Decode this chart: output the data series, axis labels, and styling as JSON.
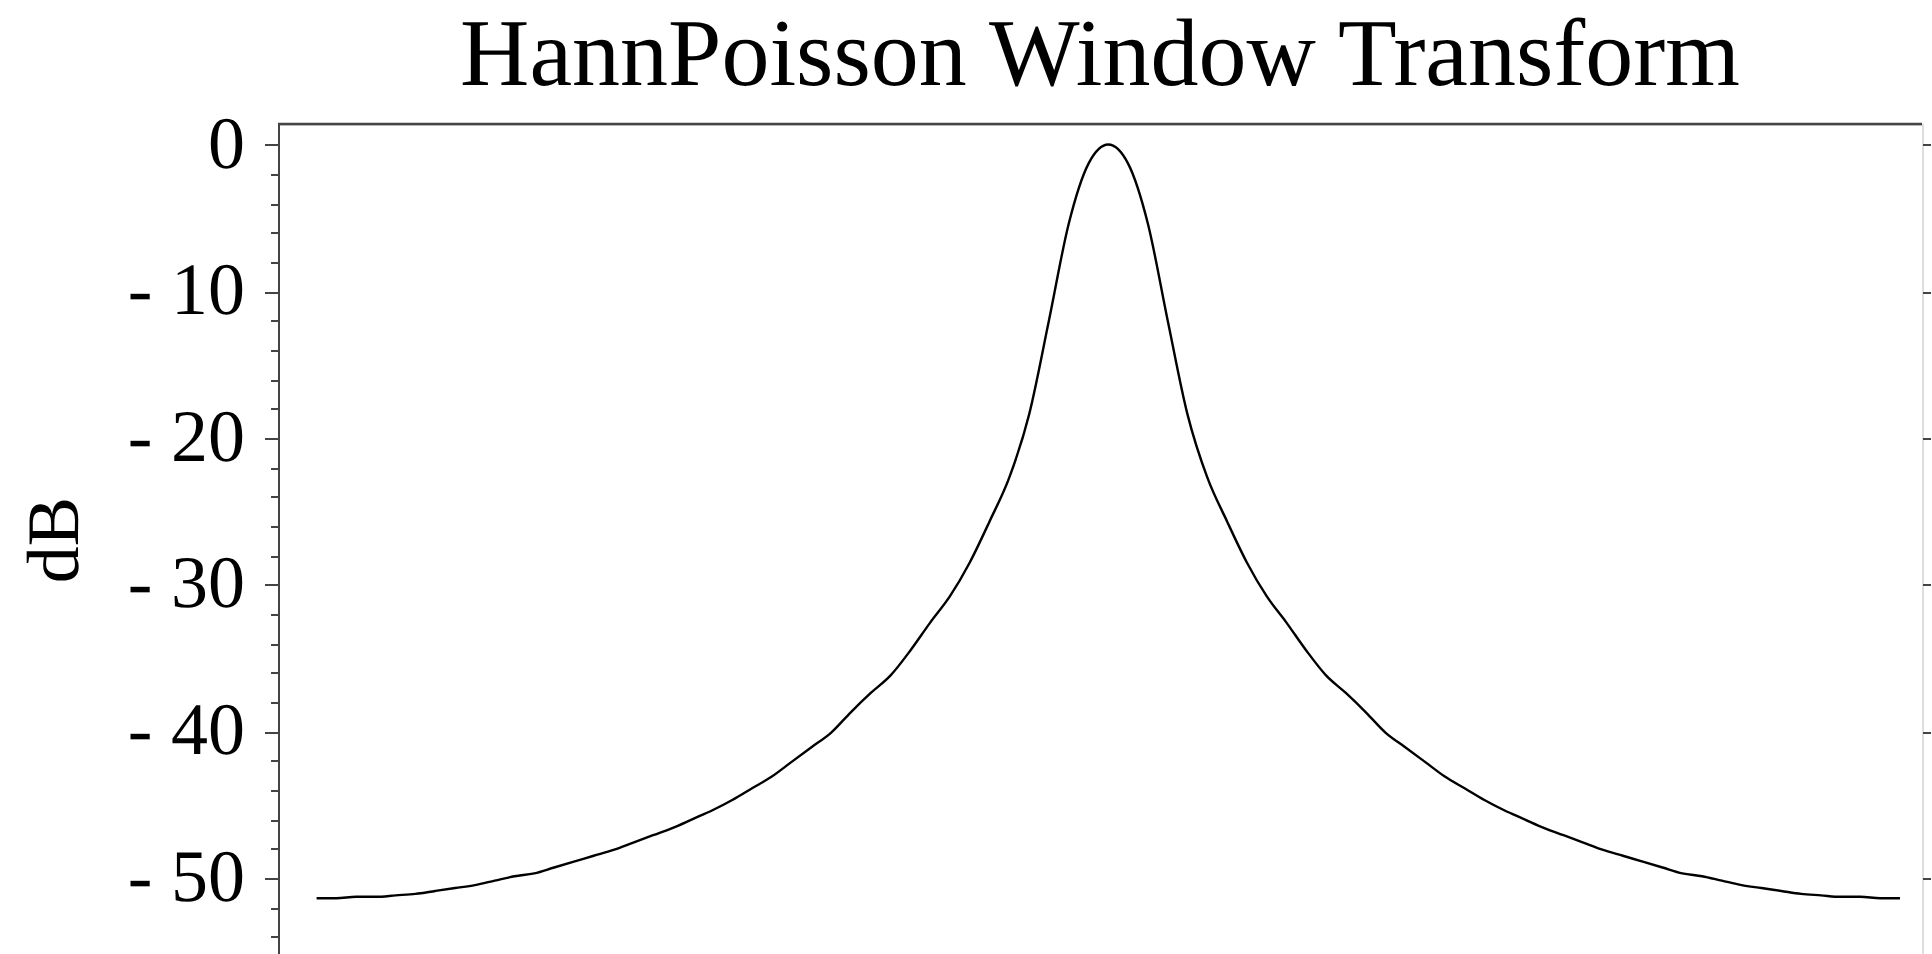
{
  "chart_data": {
    "type": "line",
    "title": "HannPoisson Window Transform",
    "ylabel": "dB",
    "categories": [
      null,
      null,
      null,
      null,
      null,
      null,
      null,
      null,
      null,
      null,
      null,
      null,
      null,
      null,
      null,
      null,
      null,
      null,
      null,
      null,
      null,
      null,
      null,
      null,
      null,
      null,
      null,
      null,
      null,
      null,
      null,
      null,
      null,
      null,
      null,
      null,
      null,
      null,
      null,
      null,
      null,
      null,
      null,
      null,
      null,
      null,
      null,
      null,
      null,
      null,
      null,
      null,
      null,
      null,
      null,
      null,
      null,
      null,
      null,
      null,
      null,
      null,
      null,
      null,
      null,
      null,
      null,
      null,
      null,
      null,
      null,
      null,
      null,
      null,
      null,
      null,
      null,
      null,
      null,
      null,
      null
    ],
    "series": [
      {
        "color": "#000000",
        "values": [
          -51.4,
          -51.4,
          -51.3,
          -51.3,
          -51.2,
          -51.1,
          -50.9,
          -50.7,
          -50.5,
          -50.2,
          -49.9,
          -49.7,
          -49.3,
          -48.9,
          -48.5,
          -48.1,
          -47.6,
          -47.1,
          -46.6,
          -46.0,
          -45.4,
          -44.7,
          -43.9,
          -43.1,
          -42.1,
          -41.1,
          -40.1,
          -38.7,
          -37.4,
          -36.2,
          -34.5,
          -32.6,
          -30.8,
          -28.5,
          -25.7,
          -22.7,
          -18.4,
          -12.0,
          -5.4,
          -1.3,
          0,
          -1.3,
          -5.4,
          -12.0,
          -18.4,
          -22.7,
          -25.7,
          -28.5,
          -30.8,
          -32.6,
          -34.5,
          -36.2,
          -37.4,
          -38.7,
          -40.1,
          -41.1,
          -42.1,
          -43.1,
          -43.9,
          -44.7,
          -45.4,
          -46.0,
          -46.6,
          -47.1,
          -47.6,
          -48.1,
          -48.5,
          -48.9,
          -49.3,
          -49.7,
          -49.9,
          -50.2,
          -50.5,
          -50.7,
          -50.9,
          -51.1,
          -51.2,
          -51.3,
          -51.3,
          -51.4,
          -51.4
        ]
      }
    ],
    "ylim": [
      -55.2,
      1.4
    ],
    "yticks": [
      0,
      {
        "value": -2,
        "label": null
      },
      {
        "value": -4,
        "label": null
      },
      {
        "value": -6,
        "label": null
      },
      {
        "value": -8,
        "label": null
      },
      {
        "value": -10,
        "label": "- 10"
      },
      {
        "value": -12,
        "label": null
      },
      {
        "value": -14,
        "label": null
      },
      {
        "value": -16,
        "label": null
      },
      {
        "value": -18,
        "label": null
      },
      {
        "value": -20,
        "label": "- 20"
      },
      {
        "value": -22,
        "label": null
      },
      {
        "value": -24,
        "label": null
      },
      {
        "value": -26,
        "label": null
      },
      {
        "value": -28,
        "label": null
      },
      {
        "value": -30,
        "label": "- 30"
      },
      {
        "value": -32,
        "label": null
      },
      {
        "value": -34,
        "label": null
      },
      {
        "value": -36,
        "label": null
      },
      {
        "value": -38,
        "label": null
      },
      {
        "value": -40,
        "label": "- 40"
      },
      {
        "value": -42,
        "label": null
      },
      {
        "value": -44,
        "label": null
      },
      {
        "value": -46,
        "label": null
      },
      {
        "value": -48,
        "label": null
      },
      {
        "value": -50,
        "label": "- 50"
      },
      {
        "value": -52,
        "label": null
      },
      {
        "value": -54,
        "label": null
      }
    ],
    "tick_labels": "y"
  }
}
